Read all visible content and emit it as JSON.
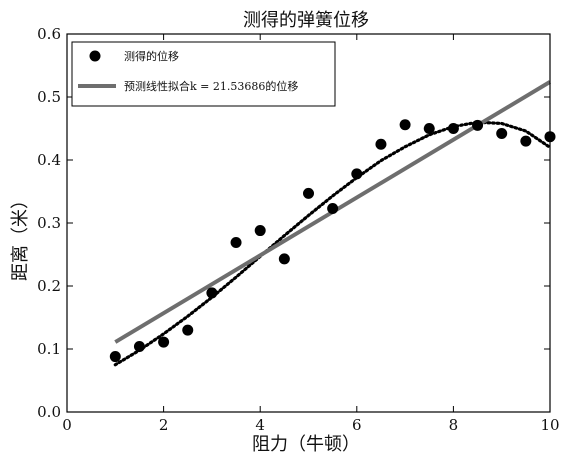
{
  "chart_data": {
    "type": "scatter",
    "title": "测得的弹簧位移",
    "xlabel": "阻力（牛顿）",
    "ylabel": "距离（米）",
    "xlim": [
      0,
      10
    ],
    "ylim": [
      0.0,
      0.6
    ],
    "xticks": [
      "0",
      "2",
      "4",
      "6",
      "8",
      "10"
    ],
    "yticks": [
      "0.0",
      "0.1",
      "0.2",
      "0.3",
      "0.4",
      "0.5",
      "0.6"
    ],
    "grid": false,
    "legend_position": "upper-left",
    "colors": {
      "points": "#000000",
      "fit_line": "#6e6e6e",
      "curve": "#000000",
      "frame": "#000000"
    },
    "series": [
      {
        "name": "测得的位移",
        "style": "points",
        "x": [
          1.0,
          1.5,
          2.0,
          2.5,
          3.0,
          3.5,
          4.0,
          4.5,
          5.0,
          5.5,
          6.0,
          6.5,
          7.0,
          7.5,
          8.0,
          8.5,
          9.0,
          9.5,
          10.0
        ],
        "y": [
          0.088,
          0.104,
          0.111,
          0.13,
          0.189,
          0.269,
          0.288,
          0.243,
          0.347,
          0.323,
          0.378,
          0.425,
          0.456,
          0.45,
          0.45,
          0.455,
          0.442,
          0.43,
          0.437
        ]
      },
      {
        "name": "预测线性拟合k = 21.53686的位移",
        "style": "line",
        "x": [
          1.0,
          10.0
        ],
        "y": [
          0.111,
          0.524
        ]
      },
      {
        "style": "dotted-curve",
        "x": [
          1.0,
          1.5,
          2.0,
          2.5,
          3.0,
          3.5,
          4.0,
          4.5,
          5.0,
          5.5,
          6.0,
          6.5,
          7.0,
          7.5,
          8.0,
          8.5,
          9.0,
          9.5,
          10.0
        ],
        "y": [
          0.075,
          0.098,
          0.124,
          0.152,
          0.182,
          0.214,
          0.247,
          0.28,
          0.312,
          0.343,
          0.372,
          0.399,
          0.421,
          0.44,
          0.453,
          0.46,
          0.458,
          0.446,
          0.42
        ]
      }
    ]
  }
}
